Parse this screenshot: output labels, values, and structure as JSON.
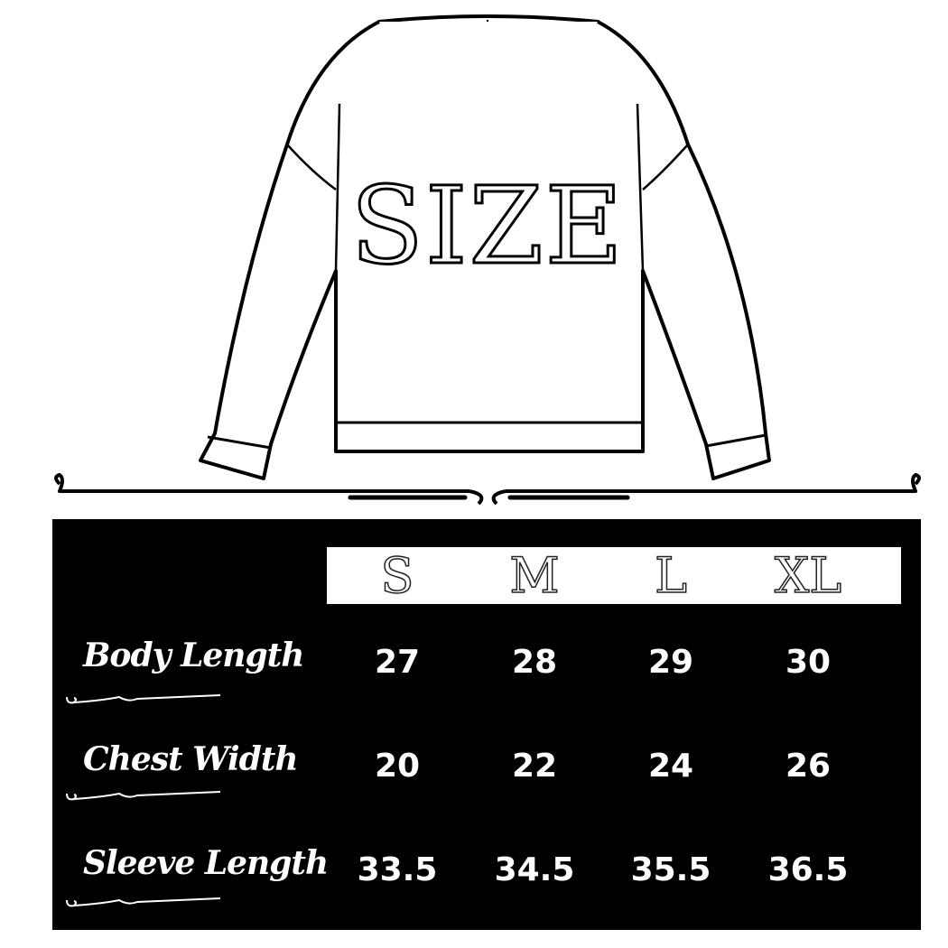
{
  "title": "SIZE",
  "sizes": [
    "S",
    "M",
    "L",
    "XL"
  ],
  "rows": [
    {
      "label": "Body Length",
      "values": [
        "27",
        "28",
        "29",
        "30"
      ]
    },
    {
      "label": "Chest Width",
      "values": [
        "20",
        "22",
        "24",
        "26"
      ]
    },
    {
      "label": "Sleeve Length",
      "values": [
        "33.5",
        "34.5",
        "35.5",
        "36.5"
      ]
    }
  ],
  "colors": {
    "background": "#ffffff",
    "table": "#000000",
    "text": "#ffffff"
  }
}
